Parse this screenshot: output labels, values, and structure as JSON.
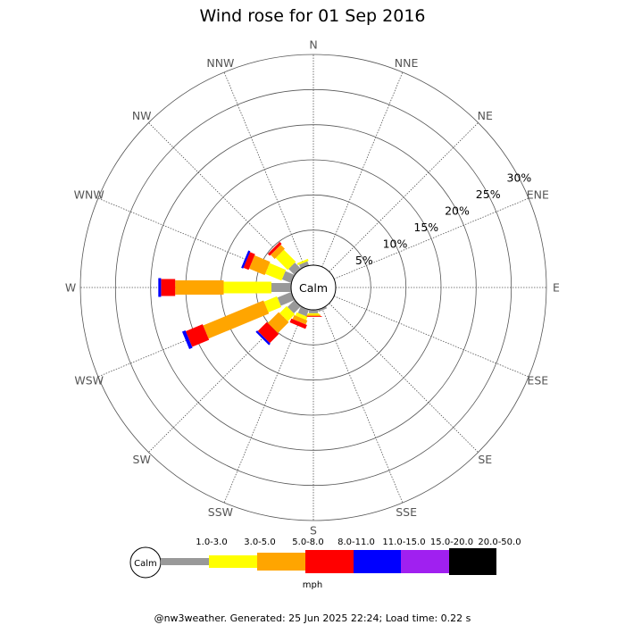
{
  "chart_data": {
    "type": "wind-rose",
    "title": "Wind rose for 01 Sep 2016",
    "directions": [
      "N",
      "NNE",
      "NE",
      "ENE",
      "E",
      "ESE",
      "SE",
      "SSE",
      "S",
      "SSW",
      "SW",
      "WSW",
      "W",
      "WNW",
      "NW",
      "NNW"
    ],
    "ring_labels": [
      "5%",
      "10%",
      "15%",
      "20%",
      "25%",
      "30%"
    ],
    "ring_values": [
      5,
      10,
      15,
      20,
      25,
      30
    ],
    "calm_label": "Calm",
    "unit": "mph",
    "speed_bins": [
      {
        "label": "1.0-3.0",
        "color": "#999999"
      },
      {
        "label": "3.0-5.0",
        "color": "#ffff00"
      },
      {
        "label": "5.0-8.0",
        "color": "#ffa500"
      },
      {
        "label": "8.0-11.0",
        "color": "#ff0000"
      },
      {
        "label": "11.0-15.0",
        "color": "#0000ff"
      },
      {
        "label": "15.0-20.0",
        "color": "#a020f0"
      },
      {
        "label": "20.0-50.0",
        "color": "#000000"
      }
    ],
    "bars": [
      {
        "direction": "N",
        "values": [
          0,
          0,
          0,
          0,
          0,
          0,
          0
        ]
      },
      {
        "direction": "NNE",
        "values": [
          0,
          0,
          0,
          0,
          0,
          0,
          0
        ]
      },
      {
        "direction": "NE",
        "values": [
          0,
          0,
          0,
          0,
          0,
          0,
          0
        ]
      },
      {
        "direction": "ENE",
        "values": [
          0,
          0,
          0,
          0,
          0,
          0,
          0
        ]
      },
      {
        "direction": "E",
        "values": [
          0,
          0,
          0,
          0,
          0,
          0,
          0
        ]
      },
      {
        "direction": "ESE",
        "values": [
          0,
          0,
          0,
          0,
          0,
          0,
          0
        ]
      },
      {
        "direction": "SE",
        "values": [
          0,
          0,
          0,
          0,
          0,
          0,
          0
        ]
      },
      {
        "direction": "SSE",
        "values": [
          0.3,
          0,
          0,
          0,
          0,
          0,
          0
        ]
      },
      {
        "direction": "S",
        "values": [
          0.5,
          0.2,
          0.2,
          0.1,
          0,
          0,
          0
        ]
      },
      {
        "direction": "SSW",
        "values": [
          1.0,
          0.5,
          0.6,
          0.6,
          0,
          0,
          0
        ]
      },
      {
        "direction": "SW",
        "values": [
          1.4,
          1.4,
          2.2,
          1.8,
          0.3,
          0,
          0
        ]
      },
      {
        "direction": "WSW",
        "values": [
          2.1,
          2.0,
          9.3,
          2.6,
          0.5,
          0,
          0
        ]
      },
      {
        "direction": "W",
        "values": [
          2.8,
          6.8,
          6.9,
          2.0,
          0.4,
          0,
          0
        ]
      },
      {
        "direction": "WNW",
        "values": [
          1.4,
          2.5,
          2.4,
          0.8,
          0.3,
          0,
          0
        ]
      },
      {
        "direction": "NW",
        "values": [
          1.2,
          2.4,
          0.8,
          0.4,
          0,
          0,
          0
        ]
      },
      {
        "direction": "NNW",
        "values": [
          0.6,
          0.3,
          0,
          0,
          0,
          0,
          0
        ]
      }
    ],
    "extra_bar": {
      "direction_deg": 337.5,
      "note": ""
    },
    "rmax": 30
  },
  "footer": "@nw3weather. Generated: 25 Jun 2025 22:24; Load time: 0.22 s"
}
